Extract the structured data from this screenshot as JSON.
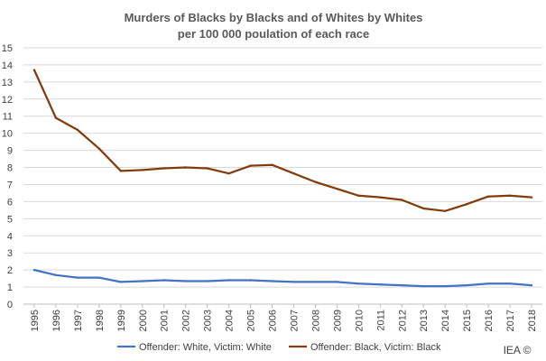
{
  "chart_data": {
    "type": "line",
    "title_lines": [
      "Murders of Blacks by Blacks and of Whites by Whites",
      "per 100 000 poulation of each race"
    ],
    "xlabel": "",
    "ylabel": "",
    "x": [
      "1995",
      "1996",
      "1997",
      "1998",
      "1999",
      "2000",
      "2001",
      "2002",
      "2003",
      "2004",
      "2005",
      "2006",
      "2007",
      "2008",
      "2009",
      "2010",
      "2011",
      "2012",
      "2013",
      "2014",
      "2015",
      "2016",
      "2017",
      "2018"
    ],
    "ylim": [
      0,
      15
    ],
    "yticks": [
      0,
      1,
      2,
      3,
      4,
      5,
      6,
      7,
      8,
      9,
      10,
      11,
      12,
      13,
      14,
      15
    ],
    "grid": true,
    "legend_position": "bottom",
    "series": [
      {
        "name": "Offender: White, Victim: White",
        "color": "#4472c4",
        "values": [
          2.0,
          1.7,
          1.55,
          1.55,
          1.3,
          1.35,
          1.4,
          1.35,
          1.35,
          1.4,
          1.4,
          1.35,
          1.3,
          1.3,
          1.3,
          1.2,
          1.15,
          1.1,
          1.05,
          1.05,
          1.1,
          1.2,
          1.2,
          1.1
        ]
      },
      {
        "name": "Offender: Black, Victim: Black",
        "color": "#843c0c",
        "values": [
          13.7,
          10.9,
          10.2,
          9.1,
          7.8,
          7.85,
          7.95,
          8.0,
          7.95,
          7.65,
          8.1,
          8.15,
          7.65,
          7.15,
          6.75,
          6.35,
          6.25,
          6.1,
          5.6,
          5.45,
          5.85,
          6.3,
          6.35,
          6.25
        ]
      }
    ],
    "credit": "IEA ©"
  }
}
